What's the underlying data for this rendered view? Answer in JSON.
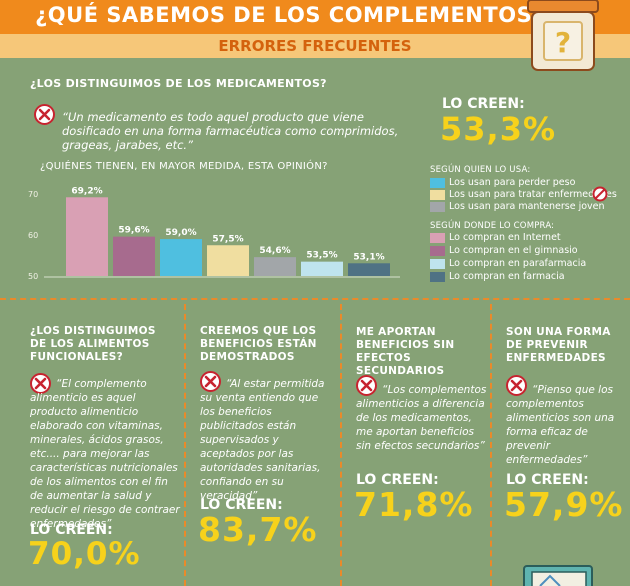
{
  "header": {
    "title": "¿QUÉ SABEMOS DE LOS COMPLEMENTOS?",
    "subtitle": "ERRORES FRECUENTES"
  },
  "main": {
    "question": "¿LOS DISTINGUIMOS DE LOS MEDICAMENTOS?",
    "quote": "“Un medicamento es todo aquel producto que viene dosificado en una forma farmacéutica como comprimidos, grageas, jarabes, etc.”",
    "lo_creen_label": "LO CREEN:",
    "lo_creen_value": "53,3%",
    "chart_question": "¿QUIÉNES TIENEN, EN MAYOR MEDIDA, ESTA OPINIÓN?"
  },
  "legend": {
    "group1_title": "SEGÚN QUIEN LO USA:",
    "group2_title": "SEGÚN DONDE LO COMPRA:"
  },
  "chart_data": {
    "type": "bar",
    "title": "¿QUIÉNES TIENEN, EN MAYOR MEDIDA, ESTA OPINIÓN?",
    "categories": [
      "Los usan para perder peso",
      "Los usan para tratar enfermedades",
      "Los usan para mantenerse joven",
      "Lo compran en Internet",
      "Lo compran en el gimnasio",
      "Lo compran en parafarmacia",
      "Lo compran en farmacia"
    ],
    "bars_order": [
      "Lo compran en Internet",
      "Lo compran en el gimnasio",
      "Los usan para perder peso",
      "Los usan para tratar enfermedades",
      "Los usan para mantenerse joven",
      "Lo compran en parafarmacia",
      "Lo compran en farmacia"
    ],
    "values": [
      69.2,
      59.6,
      59.0,
      57.5,
      54.6,
      53.5,
      53.1
    ],
    "labels": [
      "69,2%",
      "59,6%",
      "59,0%",
      "57,5%",
      "54,6%",
      "53,5%",
      "53,1%"
    ],
    "colors": [
      "#d9a0b4",
      "#a76b8e",
      "#4fbfe0",
      "#f0dea0",
      "#a2a6a9",
      "#bfe4ee",
      "#4f7284"
    ],
    "yticks": [
      "70",
      "60",
      "50"
    ],
    "ylim": [
      50,
      70
    ],
    "legend": [
      {
        "label": "Los usan para perder peso",
        "color": "#4fbfe0"
      },
      {
        "label": "Los usan para tratar enfermedades",
        "color": "#f0dea0"
      },
      {
        "label": "Los usan para mantenerse joven",
        "color": "#a2a6a9"
      },
      {
        "label": "Lo compran en Internet",
        "color": "#d9a0b4"
      },
      {
        "label": "Lo compran en el gimnasio",
        "color": "#a76b8e"
      },
      {
        "label": "Lo compran en parafarmacia",
        "color": "#bfe4ee"
      },
      {
        "label": "Lo compran en farmacia",
        "color": "#4f7284"
      }
    ]
  },
  "columns": [
    {
      "question": "¿LOS DISTINGUIMOS DE LOS ALIMENTOS FUNCIONALES?",
      "quote": "“El complemento alimenticio es aquel producto alimenticio elaborado con vitaminas, minerales, ácidos grasos, etc.... para mejorar las características nutricionales de los alimentos con el fin de aumentar la salud y reducir el riesgo de contraer enfermedades”",
      "lo_creen_label": "LO CREEN:",
      "value": "70,0%"
    },
    {
      "question": "CREEMOS QUE LOS BENEFICIOS ESTÁN DEMOSTRADOS",
      "quote": "“Al estar permitida su venta entiendo que los beneficios publicitados están supervisados y aceptados por las autoridades sanitarias, confiando en su veracidad”",
      "lo_creen_label": "LO CREEN:",
      "value": "83,7%"
    },
    {
      "question": "ME APORTAN BENEFICIOS SIN EFECTOS SECUNDARIOS",
      "quote": "“Los complementos alimenticios a diferencia de los medicamentos, me aportan beneficios sin efectos secundarios”",
      "lo_creen_label": "LO CREEN:",
      "value": "71,8%"
    },
    {
      "question": "SON UNA FORMA DE PREVENIR ENFERMEDADES",
      "quote": "“Pienso que los complementos alimenticios son una forma eficaz de prevenir enfermedades”",
      "lo_creen_label": "LO CREEN:",
      "value": "57,9%"
    }
  ],
  "jar_symbol": "?"
}
